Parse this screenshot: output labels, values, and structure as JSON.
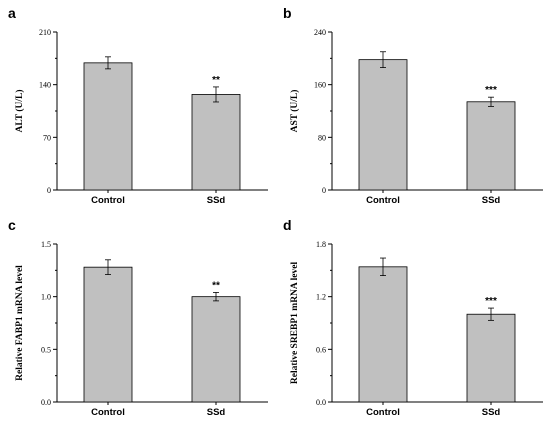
{
  "chart_data": [
    {
      "type": "bar",
      "panel_label": "a",
      "ylabel": "ALT (U/L)",
      "categories": [
        "Control",
        "SSd"
      ],
      "values": [
        169,
        127
      ],
      "errors": [
        8,
        10
      ],
      "significance": [
        "",
        "**"
      ],
      "yticks": [
        0,
        70,
        140,
        210
      ],
      "ytick_labels": [
        "0",
        "70",
        "140",
        "210"
      ],
      "ylim": [
        0,
        210
      ],
      "bar_color": "#c0c0c0"
    },
    {
      "type": "bar",
      "panel_label": "b",
      "ylabel": "AST (U/L)",
      "categories": [
        "Control",
        "SSd"
      ],
      "values": [
        198,
        134
      ],
      "errors": [
        12,
        7
      ],
      "significance": [
        "",
        "***"
      ],
      "yticks": [
        0,
        80,
        160,
        240
      ],
      "ytick_labels": [
        "0",
        "80",
        "160",
        "240"
      ],
      "ylim": [
        0,
        240
      ],
      "bar_color": "#c0c0c0"
    },
    {
      "type": "bar",
      "panel_label": "c",
      "ylabel": "Relative FABP1 mRNA level",
      "categories": [
        "Control",
        "SSd"
      ],
      "values": [
        1.28,
        1.0
      ],
      "errors": [
        0.07,
        0.04
      ],
      "significance": [
        "",
        "**"
      ],
      "yticks": [
        0,
        0.5,
        1.0,
        1.5
      ],
      "ytick_labels": [
        "0.0",
        "0.5",
        "1.0",
        "1.5"
      ],
      "ylim": [
        0,
        1.5
      ],
      "bar_color": "#c0c0c0"
    },
    {
      "type": "bar",
      "panel_label": "d",
      "ylabel": "Relative SREBP1 mRNA level",
      "categories": [
        "Control",
        "SSd"
      ],
      "values": [
        1.54,
        1.0
      ],
      "errors": [
        0.1,
        0.07
      ],
      "significance": [
        "",
        "***"
      ],
      "yticks": [
        0,
        0.6,
        1.2,
        1.8
      ],
      "ytick_labels": [
        "0.0",
        "0.6",
        "1.2",
        "1.8"
      ],
      "ylim": [
        0,
        1.8
      ],
      "bar_color": "#c0c0c0"
    }
  ]
}
